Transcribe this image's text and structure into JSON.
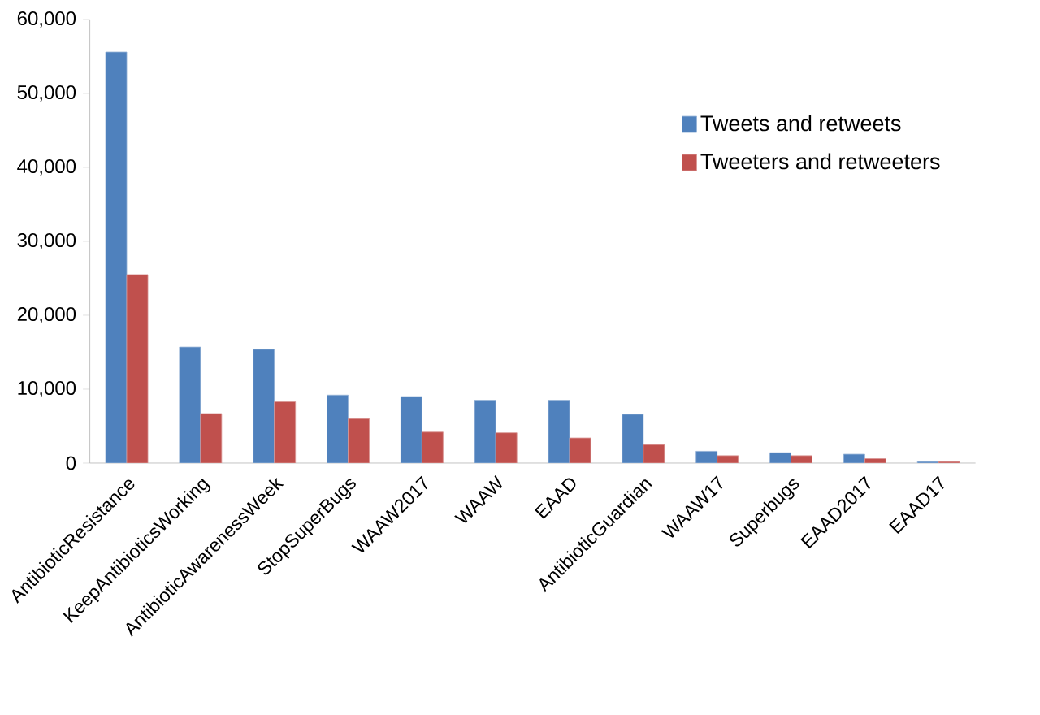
{
  "chart_data": {
    "type": "bar",
    "categories": [
      "AntibioticResistance",
      "KeepAntibioticsWorking",
      "AntibioticAwarenessWeek",
      "StopSuperBugs",
      "WAAW2017",
      "WAAW",
      "EAAD",
      "AntibioticGuardian",
      "WAAW17",
      "Superbugs",
      "EAAD2017",
      "EAAD17"
    ],
    "series": [
      {
        "name": "Tweets and retweets",
        "color": "#4f81bd",
        "values": [
          55600,
          15700,
          15400,
          9200,
          9000,
          8500,
          8500,
          6600,
          1600,
          1400,
          1200,
          200
        ]
      },
      {
        "name": "Tweeters and retweeters",
        "color": "#c0504d",
        "values": [
          25500,
          6700,
          8300,
          6000,
          4200,
          4100,
          3400,
          2500,
          1000,
          1000,
          600,
          200
        ]
      }
    ],
    "ylim": [
      0,
      60000
    ],
    "yticks": [
      {
        "value": 0,
        "label": "0"
      },
      {
        "value": 10000,
        "label": "10,000"
      },
      {
        "value": 20000,
        "label": "20,000"
      },
      {
        "value": 30000,
        "label": "30,000"
      },
      {
        "value": 40000,
        "label": "40,000"
      },
      {
        "value": 50000,
        "label": "50,000"
      },
      {
        "value": 60000,
        "label": "60,000"
      }
    ],
    "grid": false,
    "legend": "top right"
  }
}
